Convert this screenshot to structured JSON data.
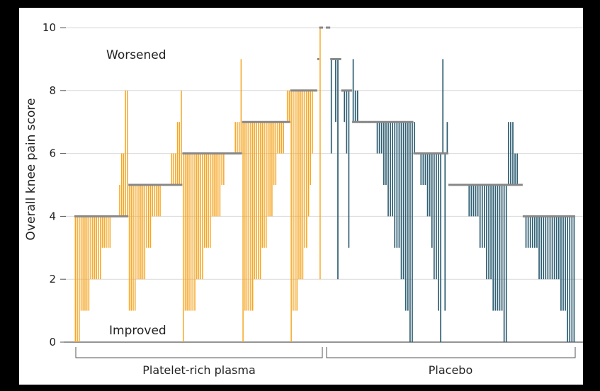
{
  "chart_data": {
    "type": "bar",
    "ylabel": "Overall knee pain score",
    "ylim": [
      0,
      10
    ],
    "yticks": [
      0,
      2,
      4,
      6,
      8,
      10
    ],
    "grid": true,
    "annotations": {
      "worsened": "Worsened",
      "improved": "Improved"
    },
    "groups": [
      {
        "name": "Platelet-rich plasma",
        "color": "#f5a623"
      },
      {
        "name": "Placebo",
        "color": "#2f5f73"
      }
    ],
    "baseline_color": "#888888",
    "series": [
      {
        "name": "Platelet-rich plasma",
        "patients": [
          {
            "baseline": 4,
            "followup": 0
          },
          {
            "baseline": 4,
            "followup": 0
          },
          {
            "baseline": 4,
            "followup": 0
          },
          {
            "baseline": 4,
            "followup": 1
          },
          {
            "baseline": 4,
            "followup": 1
          },
          {
            "baseline": 4,
            "followup": 1
          },
          {
            "baseline": 4,
            "followup": 1
          },
          {
            "baseline": 4,
            "followup": 1
          },
          {
            "baseline": 4,
            "followup": 2
          },
          {
            "baseline": 4,
            "followup": 2
          },
          {
            "baseline": 4,
            "followup": 2
          },
          {
            "baseline": 4,
            "followup": 2
          },
          {
            "baseline": 4,
            "followup": 2
          },
          {
            "baseline": 4,
            "followup": 2
          },
          {
            "baseline": 4,
            "followup": 3
          },
          {
            "baseline": 4,
            "followup": 3
          },
          {
            "baseline": 4,
            "followup": 3
          },
          {
            "baseline": 4,
            "followup": 3
          },
          {
            "baseline": 4,
            "followup": 3
          },
          {
            "baseline": 4,
            "followup": 4
          },
          {
            "baseline": 4,
            "followup": 4
          },
          {
            "baseline": 4,
            "followup": 4
          },
          {
            "baseline": 4,
            "followup": 4
          },
          {
            "baseline": 4,
            "followup": 5
          },
          {
            "baseline": 4,
            "followup": 6
          },
          {
            "baseline": 4,
            "followup": 6
          },
          {
            "baseline": 4,
            "followup": 8
          },
          {
            "baseline": 4,
            "followup": 8
          },
          {
            "baseline": 5,
            "followup": 1
          },
          {
            "baseline": 5,
            "followup": 1
          },
          {
            "baseline": 5,
            "followup": 1
          },
          {
            "baseline": 5,
            "followup": 1
          },
          {
            "baseline": 5,
            "followup": 2
          },
          {
            "baseline": 5,
            "followup": 2
          },
          {
            "baseline": 5,
            "followup": 2
          },
          {
            "baseline": 5,
            "followup": 2
          },
          {
            "baseline": 5,
            "followup": 2
          },
          {
            "baseline": 5,
            "followup": 3
          },
          {
            "baseline": 5,
            "followup": 3
          },
          {
            "baseline": 5,
            "followup": 3
          },
          {
            "baseline": 5,
            "followup": 4
          },
          {
            "baseline": 5,
            "followup": 4
          },
          {
            "baseline": 5,
            "followup": 4
          },
          {
            "baseline": 5,
            "followup": 4
          },
          {
            "baseline": 5,
            "followup": 4
          },
          {
            "baseline": 5,
            "followup": 5
          },
          {
            "baseline": 5,
            "followup": 5
          },
          {
            "baseline": 5,
            "followup": 5
          },
          {
            "baseline": 5,
            "followup": 5
          },
          {
            "baseline": 5,
            "followup": 5
          },
          {
            "baseline": 5,
            "followup": 6
          },
          {
            "baseline": 5,
            "followup": 6
          },
          {
            "baseline": 5,
            "followup": 6
          },
          {
            "baseline": 5,
            "followup": 7
          },
          {
            "baseline": 5,
            "followup": 7
          },
          {
            "baseline": 5,
            "followup": 8
          },
          {
            "baseline": 6,
            "followup": 0
          },
          {
            "baseline": 6,
            "followup": 1
          },
          {
            "baseline": 6,
            "followup": 1
          },
          {
            "baseline": 6,
            "followup": 1
          },
          {
            "baseline": 6,
            "followup": 1
          },
          {
            "baseline": 6,
            "followup": 1
          },
          {
            "baseline": 6,
            "followup": 1
          },
          {
            "baseline": 6,
            "followup": 2
          },
          {
            "baseline": 6,
            "followup": 2
          },
          {
            "baseline": 6,
            "followup": 2
          },
          {
            "baseline": 6,
            "followup": 2
          },
          {
            "baseline": 6,
            "followup": 3
          },
          {
            "baseline": 6,
            "followup": 3
          },
          {
            "baseline": 6,
            "followup": 3
          },
          {
            "baseline": 6,
            "followup": 3
          },
          {
            "baseline": 6,
            "followup": 4
          },
          {
            "baseline": 6,
            "followup": 4
          },
          {
            "baseline": 6,
            "followup": 4
          },
          {
            "baseline": 6,
            "followup": 4
          },
          {
            "baseline": 6,
            "followup": 4
          },
          {
            "baseline": 6,
            "followup": 5
          },
          {
            "baseline": 6,
            "followup": 5
          },
          {
            "baseline": 6,
            "followup": 6
          },
          {
            "baseline": 6,
            "followup": 6
          },
          {
            "baseline": 6,
            "followup": 6
          },
          {
            "baseline": 6,
            "followup": 6
          },
          {
            "baseline": 6,
            "followup": 6
          },
          {
            "baseline": 6,
            "followup": 7
          },
          {
            "baseline": 6,
            "followup": 7
          },
          {
            "baseline": 6,
            "followup": 7
          },
          {
            "baseline": 6,
            "followup": 9
          },
          {
            "baseline": 7,
            "followup": 0
          },
          {
            "baseline": 7,
            "followup": 1
          },
          {
            "baseline": 7,
            "followup": 1
          },
          {
            "baseline": 7,
            "followup": 1
          },
          {
            "baseline": 7,
            "followup": 1
          },
          {
            "baseline": 7,
            "followup": 1
          },
          {
            "baseline": 7,
            "followup": 2
          },
          {
            "baseline": 7,
            "followup": 2
          },
          {
            "baseline": 7,
            "followup": 2
          },
          {
            "baseline": 7,
            "followup": 2
          },
          {
            "baseline": 7,
            "followup": 3
          },
          {
            "baseline": 7,
            "followup": 3
          },
          {
            "baseline": 7,
            "followup": 3
          },
          {
            "baseline": 7,
            "followup": 4
          },
          {
            "baseline": 7,
            "followup": 4
          },
          {
            "baseline": 7,
            "followup": 4
          },
          {
            "baseline": 7,
            "followup": 5
          },
          {
            "baseline": 7,
            "followup": 5
          },
          {
            "baseline": 7,
            "followup": 6
          },
          {
            "baseline": 7,
            "followup": 6
          },
          {
            "baseline": 7,
            "followup": 6
          },
          {
            "baseline": 7,
            "followup": 6
          },
          {
            "baseline": 7,
            "followup": 7
          },
          {
            "baseline": 7,
            "followup": 8
          },
          {
            "baseline": 7,
            "followup": 8
          },
          {
            "baseline": 8,
            "followup": 0
          },
          {
            "baseline": 8,
            "followup": 1
          },
          {
            "baseline": 8,
            "followup": 1
          },
          {
            "baseline": 8,
            "followup": 1
          },
          {
            "baseline": 8,
            "followup": 2
          },
          {
            "baseline": 8,
            "followup": 2
          },
          {
            "baseline": 8,
            "followup": 2
          },
          {
            "baseline": 8,
            "followup": 3
          },
          {
            "baseline": 8,
            "followup": 3
          },
          {
            "baseline": 8,
            "followup": 4
          },
          {
            "baseline": 8,
            "followup": 5
          },
          {
            "baseline": 8,
            "followup": 6
          },
          {
            "baseline": 8,
            "followup": 8
          },
          {
            "baseline": 8,
            "followup": 8
          },
          {
            "baseline": 9,
            "followup": 9
          },
          {
            "baseline": 10,
            "followup": 2
          },
          {
            "baseline": 10,
            "followup": 10
          }
        ]
      },
      {
        "name": "Placebo",
        "patients": [
          {
            "baseline": 10,
            "followup": 10
          },
          {
            "baseline": 10,
            "followup": 10
          },
          {
            "baseline": 9,
            "followup": 6
          },
          {
            "baseline": 9,
            "followup": 9
          },
          {
            "baseline": 9,
            "followup": 7
          },
          {
            "baseline": 9,
            "followup": 2
          },
          {
            "baseline": 9,
            "followup": 9
          },
          {
            "baseline": 8,
            "followup": 8
          },
          {
            "baseline": 8,
            "followup": 7
          },
          {
            "baseline": 8,
            "followup": 6
          },
          {
            "baseline": 8,
            "followup": 3
          },
          {
            "baseline": 8,
            "followup": 8
          },
          {
            "baseline": 7,
            "followup": 9
          },
          {
            "baseline": 7,
            "followup": 8
          },
          {
            "baseline": 7,
            "followup": 8
          },
          {
            "baseline": 7,
            "followup": 7
          },
          {
            "baseline": 7,
            "followup": 7
          },
          {
            "baseline": 7,
            "followup": 7
          },
          {
            "baseline": 7,
            "followup": 7
          },
          {
            "baseline": 7,
            "followup": 7
          },
          {
            "baseline": 7,
            "followup": 7
          },
          {
            "baseline": 7,
            "followup": 7
          },
          {
            "baseline": 7,
            "followup": 7
          },
          {
            "baseline": 7,
            "followup": 6
          },
          {
            "baseline": 7,
            "followup": 6
          },
          {
            "baseline": 7,
            "followup": 6
          },
          {
            "baseline": 7,
            "followup": 5
          },
          {
            "baseline": 7,
            "followup": 5
          },
          {
            "baseline": 7,
            "followup": 4
          },
          {
            "baseline": 7,
            "followup": 4
          },
          {
            "baseline": 7,
            "followup": 4
          },
          {
            "baseline": 7,
            "followup": 3
          },
          {
            "baseline": 7,
            "followup": 3
          },
          {
            "baseline": 7,
            "followup": 3
          },
          {
            "baseline": 7,
            "followup": 2
          },
          {
            "baseline": 7,
            "followup": 2
          },
          {
            "baseline": 7,
            "followup": 1
          },
          {
            "baseline": 7,
            "followup": 1
          },
          {
            "baseline": 7,
            "followup": 0
          },
          {
            "baseline": 7,
            "followup": 0
          },
          {
            "baseline": 6,
            "followup": 7
          },
          {
            "baseline": 6,
            "followup": 6
          },
          {
            "baseline": 6,
            "followup": 6
          },
          {
            "baseline": 6,
            "followup": 5
          },
          {
            "baseline": 6,
            "followup": 5
          },
          {
            "baseline": 6,
            "followup": 5
          },
          {
            "baseline": 6,
            "followup": 4
          },
          {
            "baseline": 6,
            "followup": 4
          },
          {
            "baseline": 6,
            "followup": 3
          },
          {
            "baseline": 6,
            "followup": 2
          },
          {
            "baseline": 6,
            "followup": 2
          },
          {
            "baseline": 6,
            "followup": 1
          },
          {
            "baseline": 6,
            "followup": 0
          },
          {
            "baseline": 6,
            "followup": 9
          },
          {
            "baseline": 6,
            "followup": 1
          },
          {
            "baseline": 6,
            "followup": 7
          },
          {
            "baseline": 5,
            "followup": 5
          },
          {
            "baseline": 5,
            "followup": 5
          },
          {
            "baseline": 5,
            "followup": 5
          },
          {
            "baseline": 5,
            "followup": 5
          },
          {
            "baseline": 5,
            "followup": 5
          },
          {
            "baseline": 5,
            "followup": 5
          },
          {
            "baseline": 5,
            "followup": 5
          },
          {
            "baseline": 5,
            "followup": 5
          },
          {
            "baseline": 5,
            "followup": 5
          },
          {
            "baseline": 5,
            "followup": 4
          },
          {
            "baseline": 5,
            "followup": 4
          },
          {
            "baseline": 5,
            "followup": 4
          },
          {
            "baseline": 5,
            "followup": 4
          },
          {
            "baseline": 5,
            "followup": 4
          },
          {
            "baseline": 5,
            "followup": 3
          },
          {
            "baseline": 5,
            "followup": 3
          },
          {
            "baseline": 5,
            "followup": 3
          },
          {
            "baseline": 5,
            "followup": 2
          },
          {
            "baseline": 5,
            "followup": 2
          },
          {
            "baseline": 5,
            "followup": 2
          },
          {
            "baseline": 5,
            "followup": 1
          },
          {
            "baseline": 5,
            "followup": 1
          },
          {
            "baseline": 5,
            "followup": 1
          },
          {
            "baseline": 5,
            "followup": 1
          },
          {
            "baseline": 5,
            "followup": 1
          },
          {
            "baseline": 5,
            "followup": 0
          },
          {
            "baseline": 5,
            "followup": 0
          },
          {
            "baseline": 5,
            "followup": 7
          },
          {
            "baseline": 5,
            "followup": 7
          },
          {
            "baseline": 5,
            "followup": 7
          },
          {
            "baseline": 5,
            "followup": 6
          },
          {
            "baseline": 5,
            "followup": 6
          },
          {
            "baseline": 5,
            "followup": 5
          },
          {
            "baseline": 5,
            "followup": 5
          },
          {
            "baseline": 4,
            "followup": 4
          },
          {
            "baseline": 4,
            "followup": 3
          },
          {
            "baseline": 4,
            "followup": 3
          },
          {
            "baseline": 4,
            "followup": 3
          },
          {
            "baseline": 4,
            "followup": 3
          },
          {
            "baseline": 4,
            "followup": 3
          },
          {
            "baseline": 4,
            "followup": 3
          },
          {
            "baseline": 4,
            "followup": 2
          },
          {
            "baseline": 4,
            "followup": 2
          },
          {
            "baseline": 4,
            "followup": 2
          },
          {
            "baseline": 4,
            "followup": 2
          },
          {
            "baseline": 4,
            "followup": 2
          },
          {
            "baseline": 4,
            "followup": 2
          },
          {
            "baseline": 4,
            "followup": 2
          },
          {
            "baseline": 4,
            "followup": 2
          },
          {
            "baseline": 4,
            "followup": 2
          },
          {
            "baseline": 4,
            "followup": 2
          },
          {
            "baseline": 4,
            "followup": 1
          },
          {
            "baseline": 4,
            "followup": 1
          },
          {
            "baseline": 4,
            "followup": 1
          },
          {
            "baseline": 4,
            "followup": 0
          },
          {
            "baseline": 4,
            "followup": 0
          },
          {
            "baseline": 4,
            "followup": 0
          },
          {
            "baseline": 4,
            "followup": 0
          }
        ]
      }
    ]
  }
}
